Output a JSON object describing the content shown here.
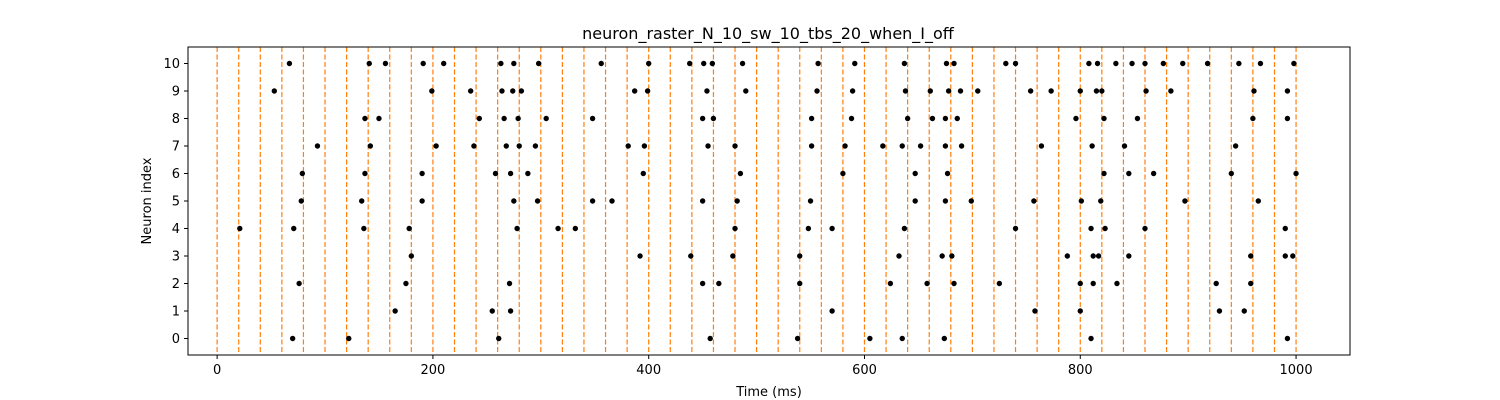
{
  "chart_data": {
    "type": "scatter",
    "title": "neuron_raster_N_10_sw_10_tbs_20_when_I_off",
    "xlabel": "Time (ms)",
    "ylabel": "Neuron index",
    "xlim": [
      -27,
      1050
    ],
    "ylim": [
      -0.6,
      10.6
    ],
    "xticks": [
      0,
      200,
      400,
      600,
      800,
      1000
    ],
    "yticks": [
      0,
      1,
      2,
      3,
      4,
      5,
      6,
      7,
      8,
      9,
      10
    ],
    "grid": false,
    "time_bin_lines": [
      0,
      20,
      40,
      60,
      80,
      100,
      120,
      140,
      160,
      180,
      200,
      220,
      240,
      260,
      280,
      300,
      320,
      340,
      360,
      380,
      400,
      420,
      440,
      460,
      480,
      500,
      520,
      540,
      560,
      580,
      600,
      620,
      640,
      660,
      680,
      700,
      720,
      740,
      760,
      780,
      800,
      820,
      840,
      860,
      880,
      900,
      920,
      940,
      960,
      980,
      1000
    ],
    "colors": {
      "spike": "#000000",
      "bin_line": "#ff7f0e",
      "axes": "#000000"
    },
    "spikes": [
      {
        "neuron": 0,
        "times": [
          70,
          122,
          261,
          457,
          538,
          605,
          635,
          674,
          810,
          992
        ]
      },
      {
        "neuron": 1,
        "times": [
          165,
          255,
          272,
          570,
          758,
          800,
          929,
          952
        ]
      },
      {
        "neuron": 2,
        "times": [
          76,
          175,
          271,
          450,
          465,
          540,
          624,
          658,
          683,
          725,
          800,
          812,
          834,
          926,
          958
        ]
      },
      {
        "neuron": 3,
        "times": [
          180,
          392,
          439,
          478,
          540,
          632,
          672,
          681,
          788,
          812,
          817,
          845,
          958,
          990,
          997
        ]
      },
      {
        "neuron": 4,
        "times": [
          21,
          71,
          136,
          178,
          278,
          316,
          332,
          480,
          548,
          570,
          637,
          740,
          810,
          823,
          860,
          990
        ]
      },
      {
        "neuron": 5,
        "times": [
          78,
          134,
          190,
          275,
          297,
          348,
          366,
          450,
          482,
          550,
          647,
          675,
          699,
          757,
          801,
          819,
          897,
          965
        ]
      },
      {
        "neuron": 6,
        "times": [
          79,
          137,
          190,
          258,
          272,
          288,
          395,
          485,
          580,
          647,
          677,
          822,
          845,
          868,
          940,
          1000
        ]
      },
      {
        "neuron": 7,
        "times": [
          93,
          142,
          203,
          238,
          268,
          280,
          295,
          381,
          396,
          455,
          480,
          551,
          582,
          617,
          635,
          652,
          675,
          690,
          764,
          811,
          841,
          944
        ]
      },
      {
        "neuron": 8,
        "times": [
          137,
          150,
          243,
          266,
          279,
          305,
          348,
          450,
          460,
          551,
          588,
          640,
          663,
          675,
          686,
          796,
          822,
          853,
          960,
          992
        ]
      },
      {
        "neuron": 9,
        "times": [
          53,
          199,
          235,
          264,
          274,
          282,
          387,
          399,
          454,
          490,
          556,
          589,
          638,
          661,
          678,
          689,
          705,
          754,
          773,
          800,
          815,
          820,
          861,
          884,
          961,
          992
        ]
      },
      {
        "neuron": 10,
        "times": [
          67,
          141,
          156,
          191,
          210,
          263,
          275,
          298,
          356,
          400,
          438,
          451,
          459,
          487,
          557,
          591,
          637,
          676,
          683,
          731,
          740,
          808,
          816,
          833,
          848,
          860,
          877,
          895,
          918,
          947,
          967,
          998
        ]
      }
    ]
  }
}
